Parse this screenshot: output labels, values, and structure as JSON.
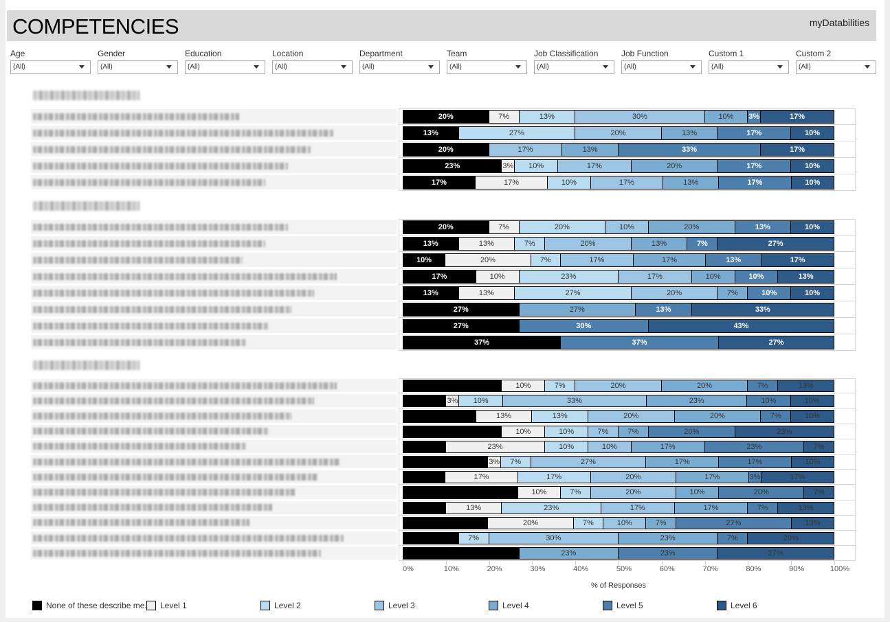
{
  "header": {
    "title": "COMPETENCIES",
    "brand": "myDatabilities"
  },
  "filters": [
    {
      "label": "Age",
      "value": "(All)"
    },
    {
      "label": "Gender",
      "value": "(All)"
    },
    {
      "label": "Education",
      "value": "(All)"
    },
    {
      "label": "Location",
      "value": "(All)"
    },
    {
      "label": "Department",
      "value": "(All)"
    },
    {
      "label": "Team",
      "value": "(All)"
    },
    {
      "label": "Job Classification",
      "value": "(All)"
    },
    {
      "label": "Job Function",
      "value": "(All)"
    },
    {
      "label": "Custom 1",
      "value": "(All)"
    },
    {
      "label": "Custom 2",
      "value": "(All)"
    }
  ],
  "chart_data": {
    "type": "bar",
    "orientation": "horizontal-stacked-100",
    "xlabel": "% of Responses",
    "xlim": [
      0,
      100
    ],
    "x_ticks": [
      "0%",
      "10%",
      "20%",
      "30%",
      "40%",
      "50%",
      "60%",
      "70%",
      "80%",
      "90%",
      "100%"
    ],
    "levels": [
      "None of these describe me.",
      "Level 1",
      "Level 2",
      "Level 3",
      "Level 4",
      "Level 5",
      "Level 6"
    ],
    "colors": [
      "#000000",
      "#f0f0f0",
      "#b9dcf0",
      "#9cc5e4",
      "#7aabd0",
      "#4d7fad",
      "#2d5a87"
    ],
    "legend_position": "bottom",
    "sections": [
      {
        "show_none_labels": true,
        "rows": [
          [
            20,
            7,
            13,
            30,
            10,
            3,
            17
          ],
          [
            13,
            0,
            27,
            20,
            13,
            17,
            10
          ],
          [
            20,
            0,
            0,
            17,
            13,
            33,
            17
          ],
          [
            23,
            3,
            10,
            17,
            20,
            17,
            10
          ],
          [
            17,
            17,
            10,
            17,
            13,
            17,
            10
          ]
        ]
      },
      {
        "show_none_labels": true,
        "rows": [
          [
            20,
            7,
            20,
            10,
            20,
            13,
            10
          ],
          [
            13,
            13,
            7,
            20,
            13,
            7,
            27
          ],
          [
            10,
            20,
            7,
            17,
            17,
            13,
            17
          ],
          [
            17,
            10,
            23,
            17,
            10,
            10,
            13
          ],
          [
            13,
            13,
            27,
            20,
            7,
            10,
            10
          ],
          [
            27,
            0,
            0,
            0,
            27,
            13,
            33
          ],
          [
            27,
            0,
            0,
            0,
            0,
            30,
            43
          ],
          [
            37,
            0,
            0,
            0,
            0,
            37,
            27
          ]
        ]
      },
      {
        "show_none_labels": false,
        "rows": [
          [
            23,
            10,
            7,
            20,
            20,
            7,
            13
          ],
          [
            10,
            3,
            10,
            33,
            23,
            10,
            10
          ],
          [
            17,
            13,
            13,
            20,
            20,
            7,
            10
          ],
          [
            23,
            10,
            10,
            7,
            7,
            20,
            23
          ],
          [
            10,
            23,
            10,
            10,
            17,
            23,
            7
          ],
          [
            20,
            3,
            7,
            27,
            17,
            17,
            10
          ],
          [
            10,
            17,
            17,
            20,
            17,
            3,
            17
          ],
          [
            27,
            10,
            7,
            20,
            10,
            20,
            7
          ],
          [
            10,
            13,
            23,
            17,
            17,
            7,
            13
          ],
          [
            20,
            20,
            7,
            10,
            7,
            27,
            10
          ],
          [
            13,
            0,
            7,
            30,
            23,
            7,
            20
          ],
          [
            27,
            0,
            0,
            0,
            23,
            23,
            27
          ]
        ]
      }
    ]
  }
}
